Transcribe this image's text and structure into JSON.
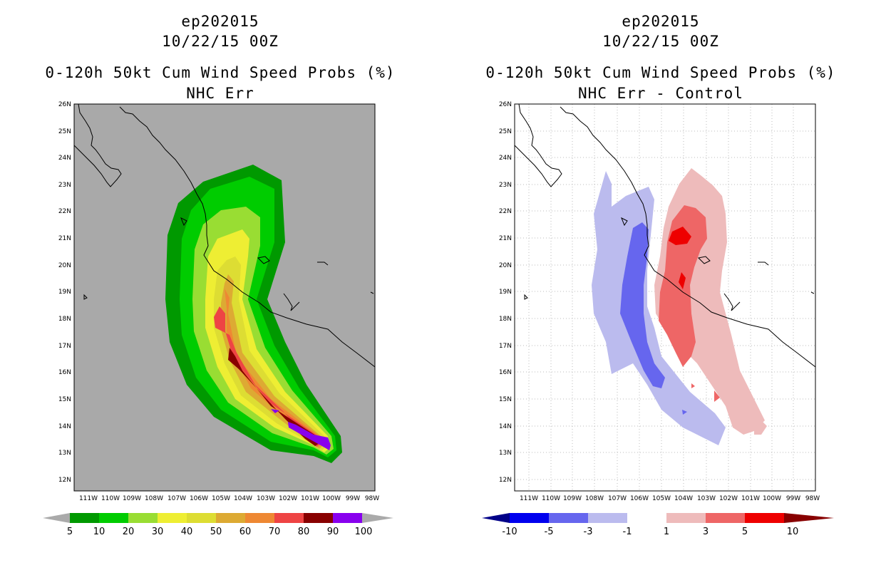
{
  "colors": {
    "background": "#ffffff",
    "land_fill": "#a9a9a9",
    "coastline": "#000000",
    "grid_dot": "#bbbbbb"
  },
  "axes": {
    "lat_labels": [
      "12N",
      "13N",
      "14N",
      "15N",
      "16N",
      "17N",
      "18N",
      "19N",
      "20N",
      "21N",
      "22N",
      "23N",
      "24N",
      "25N",
      "26N"
    ],
    "lon_labels": [
      "111W",
      "110W",
      "109W",
      "108W",
      "107W",
      "106W",
      "105W",
      "104W",
      "103W",
      "102W",
      "101W",
      "100W",
      "99W",
      "98W"
    ]
  },
  "panels": [
    {
      "id": "left",
      "title1": "ep202015",
      "title2": "10/22/15 00Z",
      "title3": "0-120h 50kt Cum Wind Speed Probs (%)",
      "title4": "NHC Err",
      "legend": {
        "labels": [
          "5",
          "10",
          "20",
          "30",
          "40",
          "50",
          "60",
          "70",
          "80",
          "90",
          "100"
        ],
        "colors": [
          "#009900",
          "#00cc00",
          "#99dd33",
          "#eeee33",
          "#dddd33",
          "#ddaa33",
          "#ee8833",
          "#ee4444",
          "#880000",
          "#8800ee"
        ],
        "arrow_color": "#aaaaaa"
      }
    },
    {
      "id": "right",
      "title1": "ep202015",
      "title2": "10/22/15 00Z",
      "title3": "0-120h 50kt Cum Wind Speed Probs (%)",
      "title4": "NHC Err - Control",
      "legend": {
        "labels": [
          "-10",
          "-5",
          "-3",
          "-1",
          "1",
          "3",
          "5",
          "10"
        ],
        "colors": [
          "#0000ee",
          "#6666ee",
          "#bbbbee",
          "#ffffff",
          "#eebbbb",
          "#ee6666",
          "#ee0000"
        ],
        "arrow_left_color": "#000088",
        "arrow_right_color": "#880000"
      }
    }
  ]
}
